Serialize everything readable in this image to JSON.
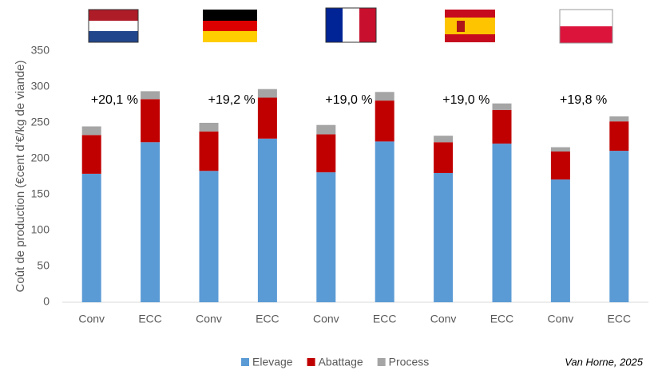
{
  "chart_data": {
    "type": "stacked-bar",
    "y_label": "Coût de production (€cent d’€/kg de viande)",
    "categories": [
      "Conv",
      "ECC",
      "Conv",
      "ECC",
      "Conv",
      "ECC",
      "Conv",
      "ECC",
      "Conv",
      "ECC"
    ],
    "series": [
      {
        "name": "Elevage",
        "color": "#5b9bd5",
        "values": [
          179,
          223,
          183,
          228,
          181,
          224,
          180,
          221,
          171,
          211
        ]
      },
      {
        "name": "Abattage",
        "color": "#c00000",
        "values": [
          54,
          60,
          55,
          57,
          53,
          57,
          43,
          47,
          39,
          41
        ]
      },
      {
        "name": "Process",
        "color": "#a5a5a5",
        "values": [
          12,
          11,
          12,
          12,
          13,
          12,
          9,
          9,
          6,
          7
        ]
      }
    ],
    "annotations": [
      "+20,1 %",
      "+19,2 %",
      "+19,0 %",
      "+19,0 %",
      "+19,8 %"
    ],
    "ylim": [
      0,
      350
    ],
    "yticks": [
      0,
      50,
      100,
      150,
      200,
      250,
      300,
      350
    ],
    "grid": false,
    "legend": "bottom",
    "source": "Van Horne, 2025"
  }
}
